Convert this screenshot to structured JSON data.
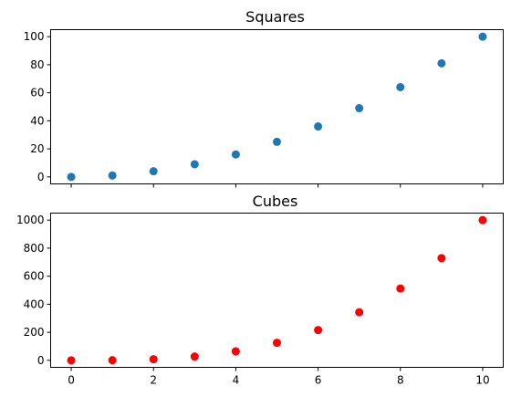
{
  "chart_data": [
    {
      "type": "scatter",
      "title": "Squares",
      "xlabel": "",
      "ylabel": "",
      "x": [
        0,
        1,
        2,
        3,
        4,
        5,
        6,
        7,
        8,
        9,
        10
      ],
      "series": [
        {
          "color": "#1f77b4",
          "values": [
            0,
            1,
            4,
            9,
            16,
            25,
            36,
            49,
            64,
            81,
            100
          ]
        }
      ],
      "xlim": [
        -0.5,
        10.5
      ],
      "ylim": [
        -5,
        105
      ],
      "xticks": [
        0,
        2,
        4,
        6,
        8,
        10
      ],
      "yticks": [
        0,
        20,
        40,
        60,
        80,
        100
      ],
      "show_xtick_labels": false,
      "grid": false,
      "legend": "none"
    },
    {
      "type": "scatter",
      "title": "Cubes",
      "xlabel": "",
      "ylabel": "",
      "x": [
        0,
        1,
        2,
        3,
        4,
        5,
        6,
        7,
        8,
        9,
        10
      ],
      "series": [
        {
          "color": "#ff0000",
          "values": [
            0,
            1,
            8,
            27,
            64,
            125,
            216,
            343,
            512,
            729,
            1000
          ]
        }
      ],
      "xlim": [
        -0.5,
        10.5
      ],
      "ylim": [
        -50,
        1050
      ],
      "xticks": [
        0,
        2,
        4,
        6,
        8,
        10
      ],
      "yticks": [
        0,
        200,
        400,
        600,
        800,
        1000
      ],
      "show_xtick_labels": true,
      "grid": false,
      "legend": "none"
    }
  ]
}
